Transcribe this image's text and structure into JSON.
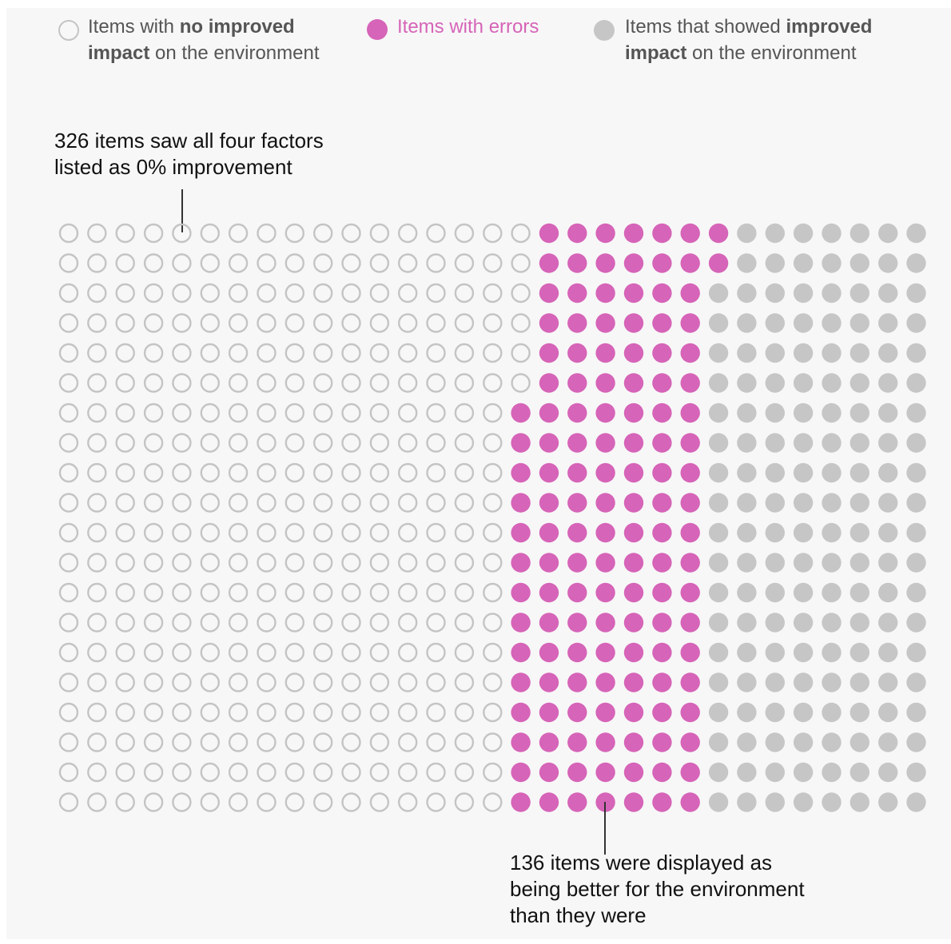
{
  "legend": [
    {
      "id": "no_improvement",
      "label_pre": "Items with ",
      "label_bold": "no improved",
      "label_bold2": "impact",
      "label_post": " on the environment"
    },
    {
      "id": "errors",
      "label": "Items with errors"
    },
    {
      "id": "improved",
      "label_pre": "Items that showed ",
      "label_bold": "improved",
      "label_bold2": "impact",
      "label_post": " on the environment"
    }
  ],
  "annotations": {
    "top": {
      "line1": "326 items saw all four factors",
      "line2": "listed as 0% improvement"
    },
    "bottom": {
      "line1": "136 items were displayed as",
      "line2": "being better for the environment",
      "line3": "than they were"
    }
  },
  "colors": {
    "no_improvement_stroke": "#c4c4c4",
    "errors": "#d664b8",
    "improved": "#c6c6c6",
    "background": "#f7f7f7"
  },
  "chart_data": {
    "type": "waffle",
    "rows": 20,
    "categories": [
      "Items with no improved impact on the environment",
      "Items with errors",
      "Items that showed improved impact on the environment"
    ],
    "row_counts": [
      {
        "no_improvement": 17,
        "errors": 7,
        "improved": 9
      },
      {
        "no_improvement": 17,
        "errors": 7,
        "improved": 9
      },
      {
        "no_improvement": 17,
        "errors": 6,
        "improved": 9
      },
      {
        "no_improvement": 17,
        "errors": 6,
        "improved": 9
      },
      {
        "no_improvement": 17,
        "errors": 6,
        "improved": 9
      },
      {
        "no_improvement": 17,
        "errors": 6,
        "improved": 9
      },
      {
        "no_improvement": 16,
        "errors": 7,
        "improved": 9
      },
      {
        "no_improvement": 16,
        "errors": 7,
        "improved": 9
      },
      {
        "no_improvement": 16,
        "errors": 7,
        "improved": 9
      },
      {
        "no_improvement": 16,
        "errors": 7,
        "improved": 9
      },
      {
        "no_improvement": 16,
        "errors": 7,
        "improved": 8
      },
      {
        "no_improvement": 16,
        "errors": 7,
        "improved": 8
      },
      {
        "no_improvement": 16,
        "errors": 7,
        "improved": 8
      },
      {
        "no_improvement": 16,
        "errors": 7,
        "improved": 8
      },
      {
        "no_improvement": 16,
        "errors": 7,
        "improved": 8
      },
      {
        "no_improvement": 16,
        "errors": 7,
        "improved": 8
      },
      {
        "no_improvement": 16,
        "errors": 7,
        "improved": 8
      },
      {
        "no_improvement": 16,
        "errors": 7,
        "improved": 8
      },
      {
        "no_improvement": 16,
        "errors": 7,
        "improved": 8
      },
      {
        "no_improvement": 16,
        "errors": 7,
        "improved": 8
      }
    ],
    "totals": {
      "no_improvement": 326,
      "errors": 136,
      "improved_visible": 170
    }
  }
}
